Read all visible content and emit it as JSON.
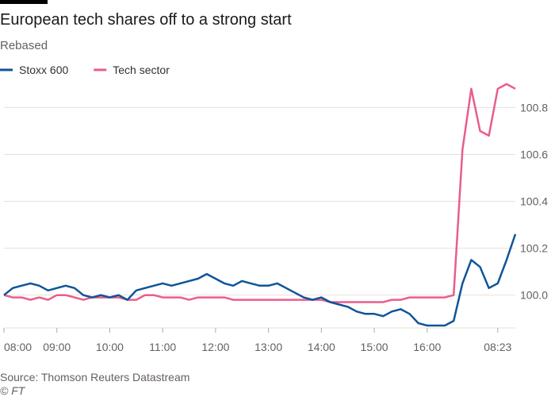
{
  "chart_data": {
    "type": "line",
    "title": "European tech shares off to a strong start",
    "subtitle": "Rebased",
    "source": "Source: Thomson Reuters Datastream",
    "credit": "© FT",
    "x": [
      "08:00",
      "08:10",
      "08:20",
      "08:30",
      "08:40",
      "08:50",
      "09:00",
      "09:10",
      "09:20",
      "09:30",
      "09:40",
      "09:50",
      "10:00",
      "10:10",
      "10:20",
      "10:30",
      "10:40",
      "10:50",
      "11:00",
      "11:10",
      "11:20",
      "11:30",
      "11:40",
      "11:50",
      "12:00",
      "12:10",
      "12:20",
      "12:30",
      "12:40",
      "12:50",
      "13:00",
      "13:10",
      "13:20",
      "13:30",
      "13:40",
      "13:50",
      "14:00",
      "14:10",
      "14:20",
      "14:30",
      "14:40",
      "14:50",
      "15:00",
      "15:10",
      "15:20",
      "15:30",
      "15:40",
      "15:50",
      "16:00",
      "16:10",
      "16:20",
      "16:30",
      "08:03",
      "08:08",
      "08:13",
      "08:18",
      "08:23",
      "08:28",
      "08:33"
    ],
    "series": [
      {
        "name": "Stoxx 600",
        "color": "#0f5499",
        "values": [
          100.0,
          100.03,
          100.04,
          100.05,
          100.04,
          100.02,
          100.03,
          100.04,
          100.03,
          100.0,
          99.99,
          100.0,
          99.99,
          100.0,
          99.98,
          100.02,
          100.03,
          100.04,
          100.05,
          100.04,
          100.05,
          100.06,
          100.07,
          100.09,
          100.07,
          100.05,
          100.04,
          100.06,
          100.05,
          100.04,
          100.04,
          100.05,
          100.03,
          100.01,
          99.99,
          99.98,
          99.99,
          99.97,
          99.96,
          99.95,
          99.93,
          99.92,
          99.92,
          99.91,
          99.93,
          99.94,
          99.92,
          99.88,
          99.87,
          99.87,
          99.87,
          99.89,
          100.05,
          100.15,
          100.12,
          100.03,
          100.05,
          100.15,
          100.26
        ]
      },
      {
        "name": "Tech sector",
        "color": "#e95d8c",
        "values": [
          100.0,
          99.99,
          99.99,
          99.98,
          99.99,
          99.98,
          100.0,
          100.0,
          99.99,
          99.98,
          99.99,
          99.99,
          99.99,
          99.99,
          99.98,
          99.98,
          100.0,
          100.0,
          99.99,
          99.99,
          99.99,
          99.98,
          99.99,
          99.99,
          99.99,
          99.99,
          99.98,
          99.98,
          99.98,
          99.98,
          99.98,
          99.98,
          99.98,
          99.98,
          99.98,
          99.98,
          99.98,
          99.97,
          99.97,
          99.97,
          99.97,
          99.97,
          99.97,
          99.97,
          99.98,
          99.98,
          99.99,
          99.99,
          99.99,
          99.99,
          99.99,
          100.0,
          100.62,
          100.88,
          100.7,
          100.68,
          100.88,
          100.9,
          100.88
        ]
      }
    ],
    "ylim": [
      99.86,
      100.92
    ],
    "yticks": [
      {
        "value": 100,
        "label": "100.0"
      },
      100.2,
      100.4,
      100.6,
      100.8
    ],
    "xticks": [
      "08:00",
      "09:00",
      "10:00",
      "11:00",
      "12:00",
      "13:00",
      "14:00",
      "15:00",
      "16:00",
      "08:23"
    ],
    "grid": true,
    "legend": "top-left"
  }
}
